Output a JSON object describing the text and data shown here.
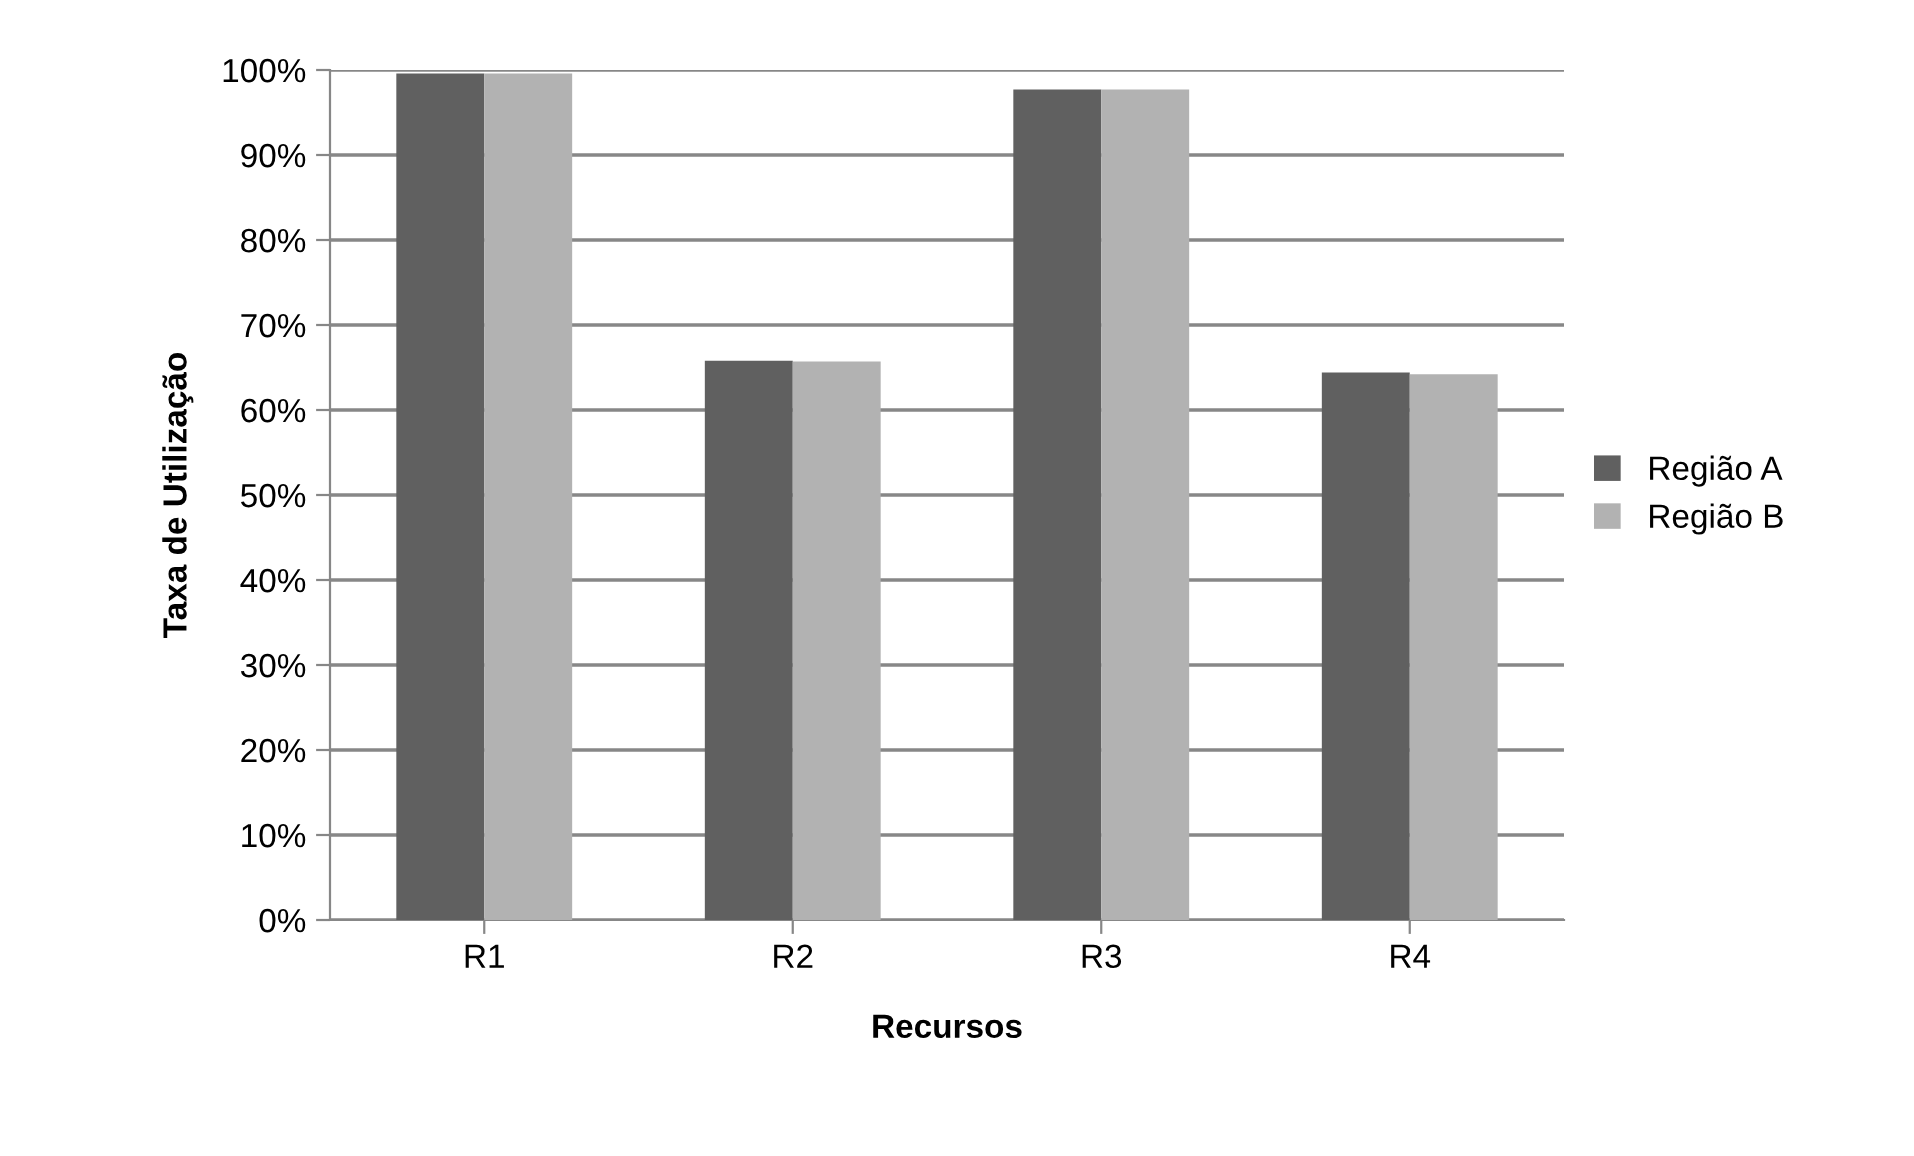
{
  "chart_data": {
    "type": "bar",
    "xlabel": "Recursos",
    "ylabel": "Taxa de Utilização",
    "categories": [
      "R1",
      "R2",
      "R3",
      "R4"
    ],
    "series": [
      {
        "name": "Região A",
        "color": "#606060",
        "values": [
          99.6,
          65.8,
          97.7,
          64.4
        ]
      },
      {
        "name": "Região B",
        "color": "#b2b2b2",
        "values": [
          99.6,
          65.7,
          97.7,
          64.2
        ]
      }
    ],
    "ylim": [
      0,
      100
    ],
    "yticks": [
      {
        "value": 0,
        "label": "0%"
      },
      {
        "value": 10,
        "label": "10%"
      },
      {
        "value": 20,
        "label": "20%"
      },
      {
        "value": 30,
        "label": "30%"
      },
      {
        "value": 40,
        "label": "40%"
      },
      {
        "value": 50,
        "label": "50%"
      },
      {
        "value": 60,
        "label": "60%"
      },
      {
        "value": 70,
        "label": "70%"
      },
      {
        "value": 80,
        "label": "80%"
      },
      {
        "value": 90,
        "label": "90%"
      },
      {
        "value": 100,
        "label": "100%"
      }
    ],
    "grid": "y",
    "legend": "right"
  }
}
